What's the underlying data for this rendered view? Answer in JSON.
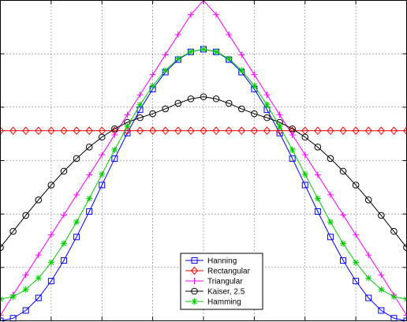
{
  "chart_data": {
    "type": "line",
    "title": "",
    "xlabel": "",
    "ylabel": "",
    "xlim": [
      0,
      32
    ],
    "ylim": [
      0,
      1.18
    ],
    "grid": true,
    "legend": {
      "placement": "bottom-center"
    },
    "x": [
      0,
      1,
      2,
      3,
      4,
      5,
      6,
      7,
      8,
      9,
      10,
      11,
      12,
      13,
      14,
      15,
      16,
      17,
      18,
      19,
      20,
      21,
      22,
      23,
      24,
      25,
      26,
      27,
      28,
      29,
      30,
      31,
      32
    ],
    "series": [
      {
        "name": "Hanning",
        "color": "#0000ff",
        "marker": "square",
        "values": [
          0.0,
          0.0096,
          0.0381,
          0.0843,
          0.1464,
          0.2222,
          0.3087,
          0.4025,
          0.5,
          0.5975,
          0.6913,
          0.7778,
          0.8536,
          0.9157,
          0.9619,
          0.9904,
          1.0,
          0.9904,
          0.9619,
          0.9157,
          0.8536,
          0.7778,
          0.6913,
          0.5975,
          0.5,
          0.4025,
          0.3087,
          0.2222,
          0.1464,
          0.0843,
          0.0381,
          0.0096,
          0.0
        ]
      },
      {
        "name": "Rectangular",
        "color": "#ff0000",
        "marker": "diamond",
        "values": [
          0.7,
          0.7,
          0.7,
          0.7,
          0.7,
          0.7,
          0.7,
          0.7,
          0.7,
          0.7,
          0.7,
          0.7,
          0.7,
          0.7,
          0.7,
          0.7,
          0.7,
          0.7,
          0.7,
          0.7,
          0.7,
          0.7,
          0.7,
          0.7,
          0.7,
          0.7,
          0.7,
          0.7,
          0.7,
          0.7,
          0.7,
          0.7,
          0.7
        ]
      },
      {
        "name": "Triangular",
        "color": "#ff00ff",
        "marker": "plus",
        "values": [
          0.02,
          0.095,
          0.1688,
          0.2425,
          0.3163,
          0.39,
          0.4638,
          0.5375,
          0.6113,
          0.685,
          0.7588,
          0.8325,
          0.9063,
          0.98,
          1.0538,
          1.1275,
          1.18,
          1.1275,
          1.0538,
          0.98,
          0.9063,
          0.8325,
          0.7588,
          0.685,
          0.6113,
          0.5375,
          0.4638,
          0.39,
          0.3163,
          0.2425,
          0.1688,
          0.095,
          0.02
        ]
      },
      {
        "name": "Kaiser, 2.5",
        "color": "#000000",
        "marker": "circle",
        "values": [
          0.27,
          0.3295,
          0.3882,
          0.4452,
          0.4997,
          0.5508,
          0.5978,
          0.6399,
          0.6765,
          0.707,
          0.7309,
          0.748,
          0.7628,
          0.7806,
          0.8008,
          0.8174,
          0.825,
          0.8174,
          0.8008,
          0.7806,
          0.7628,
          0.748,
          0.7309,
          0.707,
          0.6765,
          0.6399,
          0.5978,
          0.5508,
          0.4997,
          0.4452,
          0.3882,
          0.3295,
          0.27
        ]
      },
      {
        "name": "Hamming",
        "color": "#00cc00",
        "marker": "asterisk",
        "values": [
          0.08,
          0.0888,
          0.1151,
          0.1576,
          0.2147,
          0.2844,
          0.364,
          0.4503,
          0.54,
          0.6297,
          0.716,
          0.7956,
          0.8653,
          0.9224,
          0.9649,
          0.9912,
          1.0,
          0.9912,
          0.9649,
          0.9224,
          0.8653,
          0.7956,
          0.716,
          0.6297,
          0.54,
          0.4503,
          0.364,
          0.2844,
          0.2147,
          0.1576,
          0.1151,
          0.0888,
          0.08
        ]
      }
    ]
  }
}
